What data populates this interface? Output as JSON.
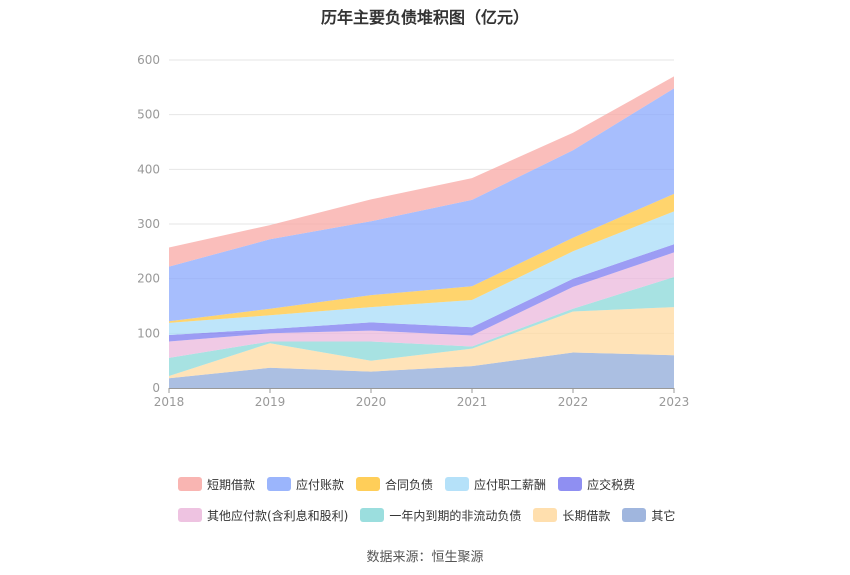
{
  "chart_data": {
    "type": "area",
    "stacked": true,
    "title": "历年主要负债堆积图（亿元）",
    "x": [
      "2018",
      "2019",
      "2020",
      "2021",
      "2022",
      "2023"
    ],
    "ylim": [
      0,
      600
    ],
    "yticks": [
      0,
      100,
      200,
      300,
      400,
      500,
      600
    ],
    "grid": true,
    "legend_position": "bottom",
    "series": [
      {
        "name": "其它",
        "color": "#8fa9d8",
        "values": [
          18,
          37,
          30,
          40,
          65,
          60
        ]
      },
      {
        "name": "长期借款",
        "color": "#ffd9a0",
        "values": [
          4,
          45,
          20,
          32,
          75,
          88
        ]
      },
      {
        "name": "一年内到期的非流动负债",
        "color": "#8ad8d8",
        "values": [
          33,
          3,
          35,
          4,
          5,
          55
        ]
      },
      {
        "name": "其他应付款(含利息和股利)",
        "color": "#ebb8dc",
        "values": [
          30,
          15,
          20,
          20,
          40,
          45
        ]
      },
      {
        "name": "应交税费",
        "color": "#7b7bf0",
        "values": [
          12,
          8,
          15,
          15,
          15,
          15
        ]
      },
      {
        "name": "应付职工薪酬",
        "color": "#a8dcf8",
        "values": [
          22,
          25,
          28,
          50,
          50,
          60
        ]
      },
      {
        "name": "合同负债",
        "color": "#ffc63c",
        "values": [
          3,
          12,
          22,
          25,
          25,
          32
        ]
      },
      {
        "name": "应付账款",
        "color": "#8aa8fc",
        "values": [
          100,
          127,
          135,
          158,
          160,
          193
        ]
      },
      {
        "name": "短期借款",
        "color": "#f8a8a4",
        "values": [
          35,
          26,
          40,
          40,
          32,
          22
        ]
      }
    ],
    "legend_rows": [
      [
        "短期借款",
        "应付账款",
        "合同负债",
        "应付职工薪酬",
        "应交税费"
      ],
      [
        "其他应付款(含利息和股利)",
        "一年内到期的非流动负债",
        "长期借款",
        "其它"
      ]
    ]
  },
  "source": "数据来源：恒生聚源"
}
